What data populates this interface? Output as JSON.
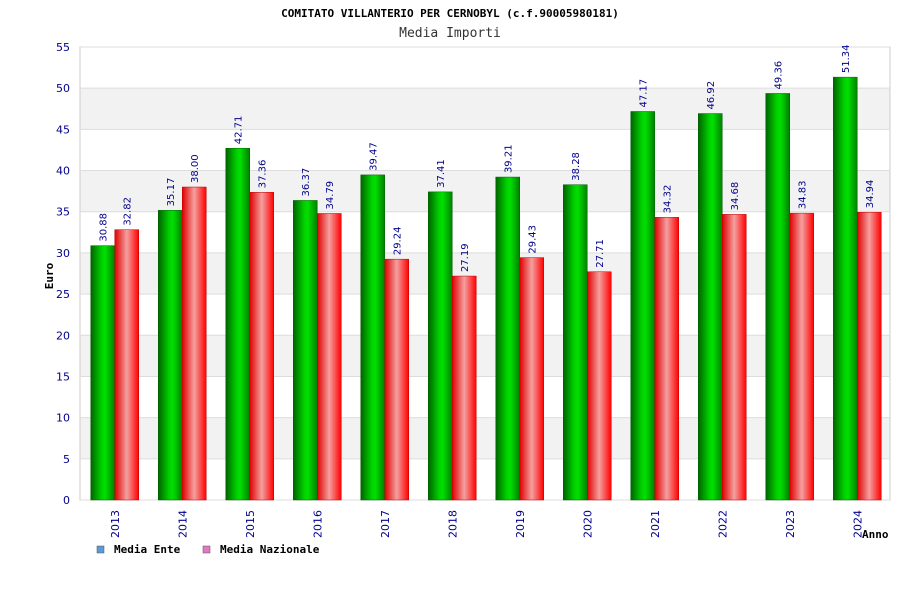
{
  "chart_data": {
    "type": "bar",
    "title": "COMITATO VILLANTERIO PER CERNOBYL (c.f.90005980181)",
    "subtitle": "Media Importi",
    "ylabel": "Euro",
    "xlabel": "Anno",
    "ylim": [
      0,
      55
    ],
    "ytick_step": 5,
    "grid": true,
    "legend_position": "bottom-left",
    "categories": [
      "2013",
      "2014",
      "2015",
      "2016",
      "2017",
      "2018",
      "2019",
      "2020",
      "2021",
      "2022",
      "2023",
      "2024"
    ],
    "series": [
      {
        "name": "Media Ente",
        "color": "#00c000",
        "legend_color": "#5b9bd5",
        "values": [
          30.88,
          35.17,
          42.71,
          36.37,
          39.47,
          37.41,
          39.21,
          38.28,
          47.17,
          46.92,
          49.36,
          51.34
        ]
      },
      {
        "name": "Media Nazionale",
        "color": "#ff2020",
        "legend_color": "#e377c2",
        "values": [
          32.82,
          38.0,
          37.36,
          34.79,
          29.24,
          27.19,
          29.43,
          27.71,
          34.32,
          34.68,
          34.83,
          34.94
        ]
      }
    ]
  }
}
